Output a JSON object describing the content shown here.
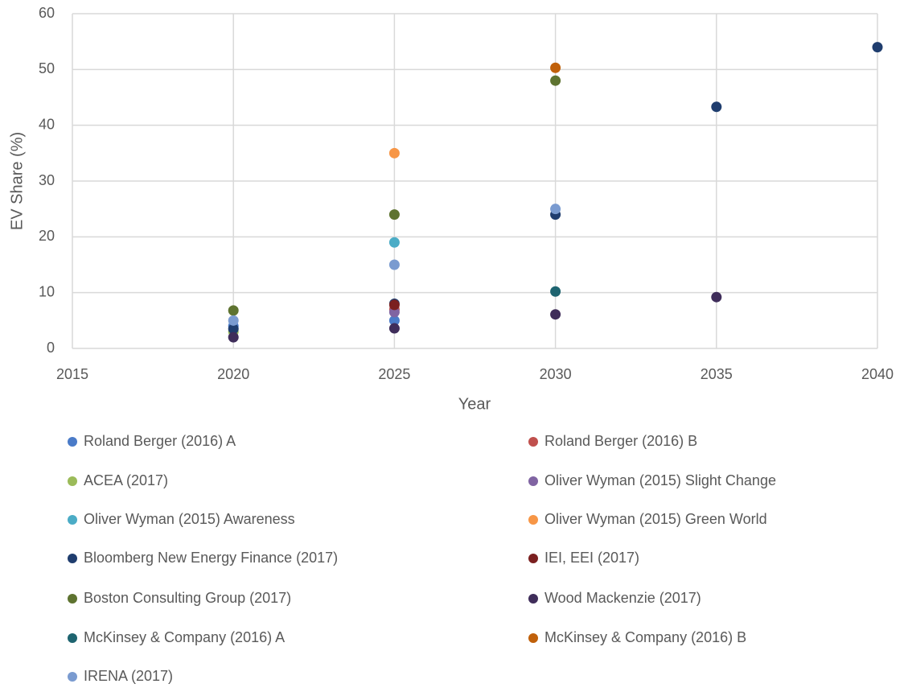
{
  "chart_data": {
    "type": "scatter",
    "x_label": "Year",
    "y_label": "EV Share (%)",
    "xlim": [
      2015,
      2040
    ],
    "xticks": [
      2015,
      2020,
      2025,
      2030,
      2035,
      2040
    ],
    "ylim": [
      0,
      60
    ],
    "yticks": [
      0,
      10,
      20,
      30,
      40,
      50,
      60
    ],
    "grid": true,
    "series": [
      {
        "name": "Roland Berger (2016) A",
        "color": "#4a7bc8",
        "x": [
          2020,
          2025
        ],
        "values": [
          4,
          5
        ]
      },
      {
        "name": "Roland Berger (2016) B",
        "color": "#c0504d",
        "x": [
          2025
        ],
        "values": [
          7
        ]
      },
      {
        "name": "ACEA (2017)",
        "color": "#9bbb59",
        "x": [
          2020
        ],
        "values": [
          3
        ]
      },
      {
        "name": "Oliver Wyman (2015) Slight Change",
        "color": "#8064a2",
        "x": [
          2025
        ],
        "values": [
          6.5
        ]
      },
      {
        "name": "Oliver Wyman (2015) Awareness",
        "color": "#4bacc6",
        "x": [
          2025
        ],
        "values": [
          19
        ]
      },
      {
        "name": "Oliver Wyman (2015) Green World",
        "color": "#f79646",
        "x": [
          2025
        ],
        "values": [
          35
        ]
      },
      {
        "name": "Bloomberg New Energy Finance (2017)",
        "color": "#1f3d6e",
        "x": [
          2020,
          2025,
          2030,
          2035,
          2040
        ],
        "values": [
          3.5,
          8,
          24,
          43.3,
          54
        ]
      },
      {
        "name": "IEI, EEI (2017)",
        "color": "#7b2020",
        "x": [
          2025
        ],
        "values": [
          7.8
        ]
      },
      {
        "name": "Boston Consulting Group (2017)",
        "color": "#5e7330",
        "x": [
          2020,
          2025,
          2030
        ],
        "values": [
          6.8,
          24,
          48
        ]
      },
      {
        "name": "Wood Mackenzie (2017)",
        "color": "#3f2d5a",
        "x": [
          2020,
          2025,
          2030,
          2035
        ],
        "values": [
          2,
          3.6,
          6.1,
          9.2
        ]
      },
      {
        "name": "McKinsey & Company (2016) A",
        "color": "#1e6470",
        "x": [
          2030
        ],
        "values": [
          10.2
        ]
      },
      {
        "name": "McKinsey & Company (2016) B",
        "color": "#c0600a",
        "x": [
          2030
        ],
        "values": [
          50.3
        ]
      },
      {
        "name": "IRENA (2017)",
        "color": "#7a9bd0",
        "x": [
          2020,
          2025,
          2030
        ],
        "values": [
          5,
          15,
          25
        ]
      }
    ]
  }
}
